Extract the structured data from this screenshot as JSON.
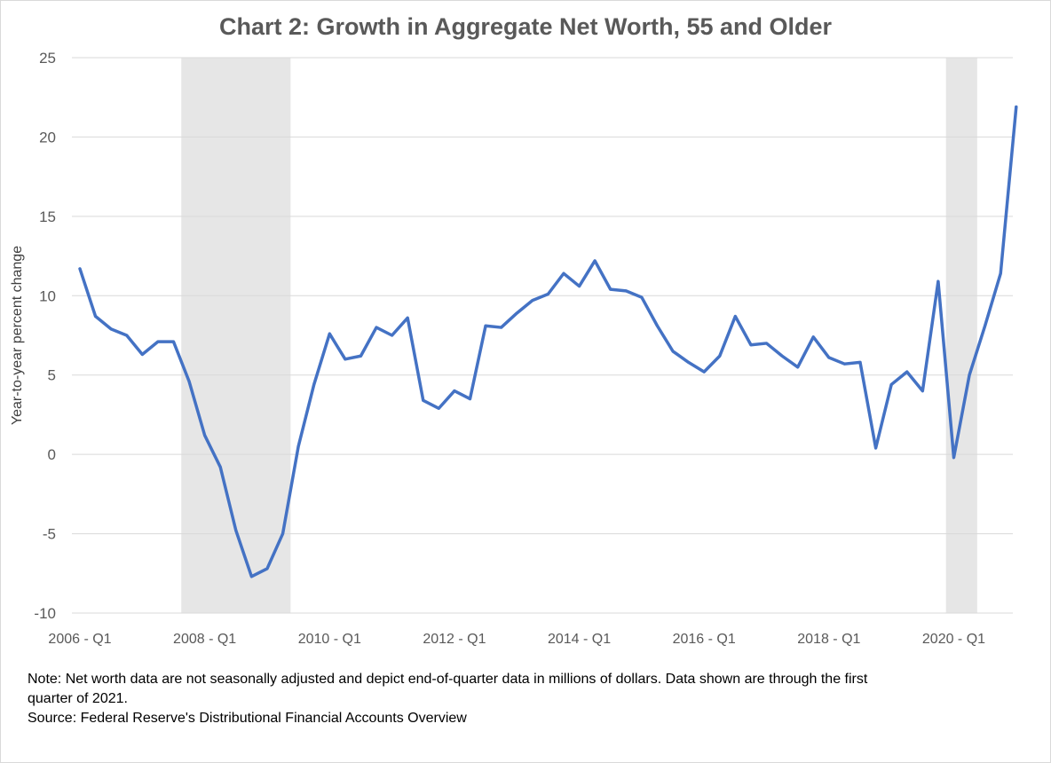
{
  "chart_data": {
    "type": "line",
    "title": "Chart 2: Growth in Aggregate Net Worth, 55 and Older",
    "xlabel": "",
    "ylabel": "Year-to-year percent change",
    "ylim": [
      -10,
      25
    ],
    "yticks": [
      -10,
      -5,
      0,
      5,
      10,
      15,
      20,
      25
    ],
    "y_tick_labels": [
      "-10",
      "-5",
      "0",
      "5",
      "10",
      "15",
      "20",
      "25"
    ],
    "x_tick_labels": [
      "2006 - Q1",
      "2008 - Q1",
      "2010 - Q1",
      "2012 - Q1",
      "2014 - Q1",
      "2016 - Q1",
      "2018 - Q1",
      "2020 - Q1"
    ],
    "x_tick_index": [
      0,
      8,
      16,
      24,
      32,
      40,
      48,
      56
    ],
    "grid": "horizontal",
    "legend": "none",
    "recession_shading": [
      {
        "start": "2007 - Q4",
        "end": "2009 - Q2"
      },
      {
        "start": "2020 - Q1",
        "end": "2020 - Q2"
      }
    ],
    "x": [
      "2006 - Q1",
      "2006 - Q2",
      "2006 - Q3",
      "2006 - Q4",
      "2007 - Q1",
      "2007 - Q2",
      "2007 - Q3",
      "2007 - Q4",
      "2008 - Q1",
      "2008 - Q2",
      "2008 - Q3",
      "2008 - Q4",
      "2009 - Q1",
      "2009 - Q2",
      "2009 - Q3",
      "2009 - Q4",
      "2010 - Q1",
      "2010 - Q2",
      "2010 - Q3",
      "2010 - Q4",
      "2011 - Q1",
      "2011 - Q2",
      "2011 - Q3",
      "2011 - Q4",
      "2012 - Q1",
      "2012 - Q2",
      "2012 - Q3",
      "2012 - Q4",
      "2013 - Q1",
      "2013 - Q2",
      "2013 - Q3",
      "2013 - Q4",
      "2014 - Q1",
      "2014 - Q2",
      "2014 - Q3",
      "2014 - Q4",
      "2015 - Q1",
      "2015 - Q2",
      "2015 - Q3",
      "2015 - Q4",
      "2016 - Q1",
      "2016 - Q2",
      "2016 - Q3",
      "2016 - Q4",
      "2017 - Q1",
      "2017 - Q2",
      "2017 - Q3",
      "2017 - Q4",
      "2018 - Q1",
      "2018 - Q2",
      "2018 - Q3",
      "2018 - Q4",
      "2019 - Q1",
      "2019 - Q2",
      "2019 - Q3",
      "2019 - Q4",
      "2020 - Q1",
      "2020 - Q2",
      "2020 - Q3",
      "2020 - Q4",
      "2021 - Q1"
    ],
    "series": [
      {
        "values": [
          11.7,
          8.7,
          7.9,
          7.5,
          6.3,
          7.1,
          7.1,
          4.6,
          1.2,
          -0.8,
          -4.8,
          -7.7,
          -7.2,
          -5.0,
          0.5,
          4.4,
          7.6,
          6.0,
          6.2,
          8.0,
          7.5,
          8.6,
          3.4,
          2.9,
          4.0,
          3.5,
          8.1,
          8.0,
          8.9,
          9.7,
          10.1,
          11.4,
          10.6,
          12.2,
          10.4,
          10.3,
          9.9,
          8.1,
          6.5,
          5.8,
          5.2,
          6.2,
          8.7,
          6.9,
          7.0,
          6.2,
          5.5,
          7.4,
          6.1,
          5.7,
          5.8,
          0.4,
          4.4,
          5.2,
          4.0,
          10.9,
          -0.2,
          5.0,
          8.1,
          11.4,
          21.9
        ],
        "color": "#4472c4"
      }
    ],
    "colors": {
      "line": "#4472c4",
      "shading": "#e6e6e6",
      "grid": "#d9d9d9",
      "tick_text": "#595959",
      "title": "#595959"
    }
  },
  "notes": {
    "note_line1": "Note: Net worth data are not seasonally adjusted and depict end-of-quarter data in millions of dollars. Data shown are through the first",
    "note_line2": "quarter of 2021.",
    "source": "Source: Federal Reserve's Distributional Financial Accounts Overview"
  }
}
